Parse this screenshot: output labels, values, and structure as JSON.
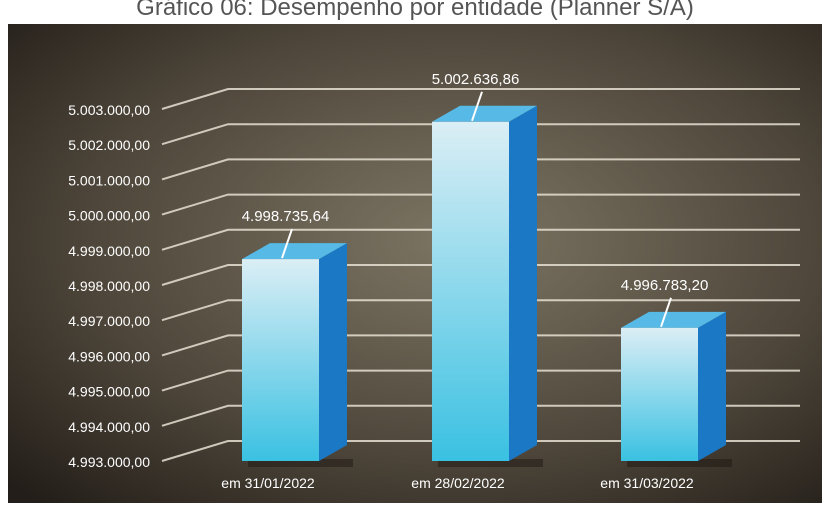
{
  "title": "Gráfico 06: Desempenho por entidade (Planner S/A)",
  "colors": {
    "background": "#3b342c",
    "gridline": "#e6e0d2",
    "bar_front_top": "#dbeef5",
    "bar_front_bottom": "#3ac1e2",
    "bar_side": "#1a78c4",
    "bar_top": "#56b9e6",
    "label": "#ffffff"
  },
  "chart_data": {
    "type": "bar",
    "title": "Gráfico 06: Desempenho por entidade (Planner S/A)",
    "xlabel": "",
    "ylabel": "",
    "categories": [
      "em 31/01/2022",
      "em 28/02/2022",
      "em 31/03/2022"
    ],
    "values": [
      4998735.64,
      5002636.86,
      4996783.2
    ],
    "value_labels": [
      "4.998.735,64",
      "5.002.636,86",
      "4.996.783,20"
    ],
    "ylim": [
      4993000,
      5003000
    ],
    "yticks": [
      4993000,
      4994000,
      4995000,
      4996000,
      4997000,
      4998000,
      4999000,
      5000000,
      5001000,
      5002000,
      5003000
    ],
    "ytick_labels": [
      "4.993.000,00",
      "4.994.000,00",
      "4.995.000,00",
      "4.996.000,00",
      "4.997.000,00",
      "4.998.000,00",
      "4.999.000,00",
      "5.000.000,00",
      "5.001.000,00",
      "5.002.000,00",
      "5.003.000,00"
    ],
    "grid": true,
    "style": "3d-column"
  }
}
